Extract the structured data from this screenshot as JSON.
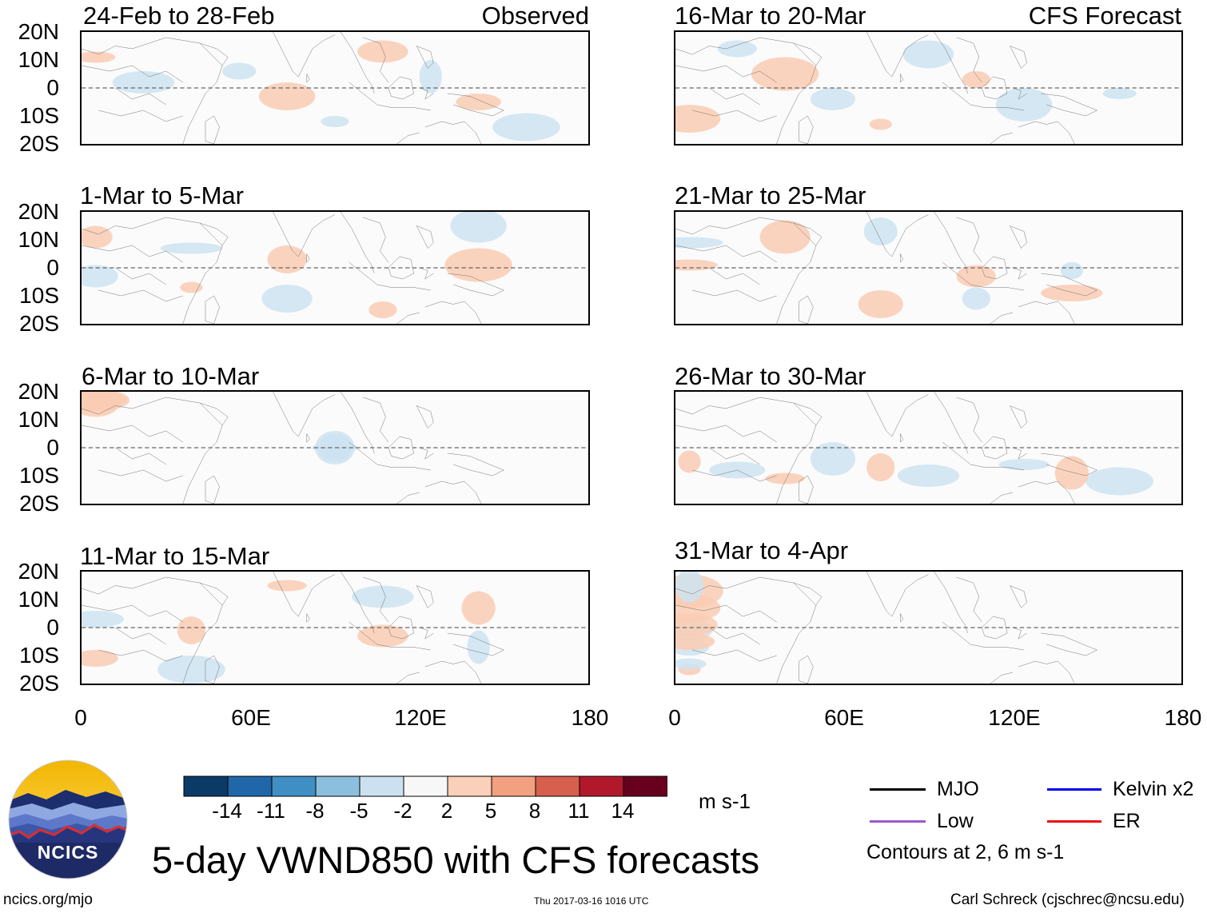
{
  "observed_label": "Observed",
  "forecast_label": "CFS Forecast",
  "left_panels": [
    {
      "title": "24-Feb to 28-Feb"
    },
    {
      "title": "1-Mar to 5-Mar"
    },
    {
      "title": "6-Mar to 10-Mar"
    },
    {
      "title": "11-Mar to 15-Mar"
    }
  ],
  "right_panels": [
    {
      "title": "16-Mar to 20-Mar"
    },
    {
      "title": "21-Mar to 25-Mar"
    },
    {
      "title": "26-Mar to 30-Mar"
    },
    {
      "title": "31-Mar to 4-Apr"
    }
  ],
  "lat_ticks": [
    "20N",
    "10N",
    "0",
    "10S",
    "20S"
  ],
  "lon_ticks": [
    "0",
    "60E",
    "120E",
    "180"
  ],
  "colorbar": {
    "colors": [
      "#0b3a66",
      "#2067a9",
      "#3f8fc5",
      "#8cbfdd",
      "#cbe1ef",
      "#f7f7f7",
      "#fbd0ba",
      "#f2a07f",
      "#d6604d",
      "#b2182b",
      "#67001f"
    ],
    "labels": [
      "-14",
      "-11",
      "-8",
      "-5",
      "-2",
      "2",
      "5",
      "8",
      "11",
      "14"
    ],
    "units": "m s-1"
  },
  "legend": {
    "items": [
      {
        "label": "MJO",
        "color": "#000000"
      },
      {
        "label": "Kelvin x2",
        "color": "#0000ee"
      },
      {
        "label": "Low",
        "color": "#9b59d0"
      },
      {
        "label": "ER",
        "color": "#ee1111"
      }
    ],
    "note": "Contours at 2, 6 m s-1"
  },
  "logo_text": "NCICS",
  "main_title": "5-day VWND850 with CFS forecasts",
  "footer": {
    "url": "ncics.org/mjo",
    "timestamp": "Thu 2017-03-16 1016 UTC",
    "author": "Carl Schreck (cjschrec@ncsu.edu)"
  }
}
